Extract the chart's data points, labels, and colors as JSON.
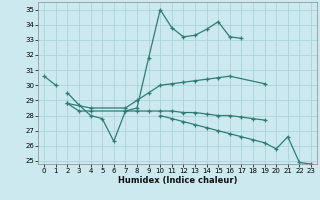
{
  "background_color": "#cce9ef",
  "grid_color": "#aad4da",
  "line_color": "#2e7d74",
  "xlabel": "Humidex (Indice chaleur)",
  "xlim": [
    -0.5,
    23.5
  ],
  "ylim": [
    24.8,
    35.5
  ],
  "yticks": [
    25,
    26,
    27,
    28,
    29,
    30,
    31,
    32,
    33,
    34,
    35
  ],
  "xticks": [
    0,
    1,
    2,
    3,
    4,
    5,
    6,
    7,
    8,
    9,
    10,
    11,
    12,
    13,
    14,
    15,
    16,
    17,
    18,
    19,
    20,
    21,
    22,
    23
  ],
  "series": [
    {
      "x": [
        0,
        1
      ],
      "y": [
        30.6,
        30.0
      ]
    },
    {
      "x": [
        2,
        3,
        4,
        5,
        6,
        7,
        8,
        9,
        10,
        11,
        12,
        13,
        14,
        15,
        16,
        17
      ],
      "y": [
        29.5,
        28.7,
        28.0,
        27.8,
        26.3,
        28.3,
        28.5,
        31.8,
        35.0,
        33.8,
        33.2,
        33.3,
        33.7,
        34.2,
        33.2,
        33.1
      ]
    },
    {
      "x": [
        2,
        4,
        7,
        8,
        9,
        10,
        11,
        12,
        13,
        14,
        15,
        16,
        19
      ],
      "y": [
        28.8,
        28.5,
        28.5,
        29.0,
        29.5,
        30.0,
        30.1,
        30.2,
        30.3,
        30.4,
        30.5,
        30.6,
        30.1
      ]
    },
    {
      "x": [
        2,
        3,
        4,
        7,
        8,
        9,
        10,
        11,
        12,
        13,
        14,
        15,
        16,
        17,
        18,
        19
      ],
      "y": [
        28.8,
        28.3,
        28.3,
        28.3,
        28.3,
        28.3,
        28.3,
        28.3,
        28.2,
        28.2,
        28.1,
        28.0,
        28.0,
        27.9,
        27.8,
        27.7
      ]
    },
    {
      "x": [
        10,
        11,
        12,
        13,
        14,
        15,
        16,
        17,
        18,
        19,
        20,
        21,
        22,
        23
      ],
      "y": [
        28.0,
        27.8,
        27.6,
        27.4,
        27.2,
        27.0,
        26.8,
        26.6,
        26.4,
        26.2,
        25.8,
        26.6,
        24.9,
        24.8
      ]
    }
  ]
}
